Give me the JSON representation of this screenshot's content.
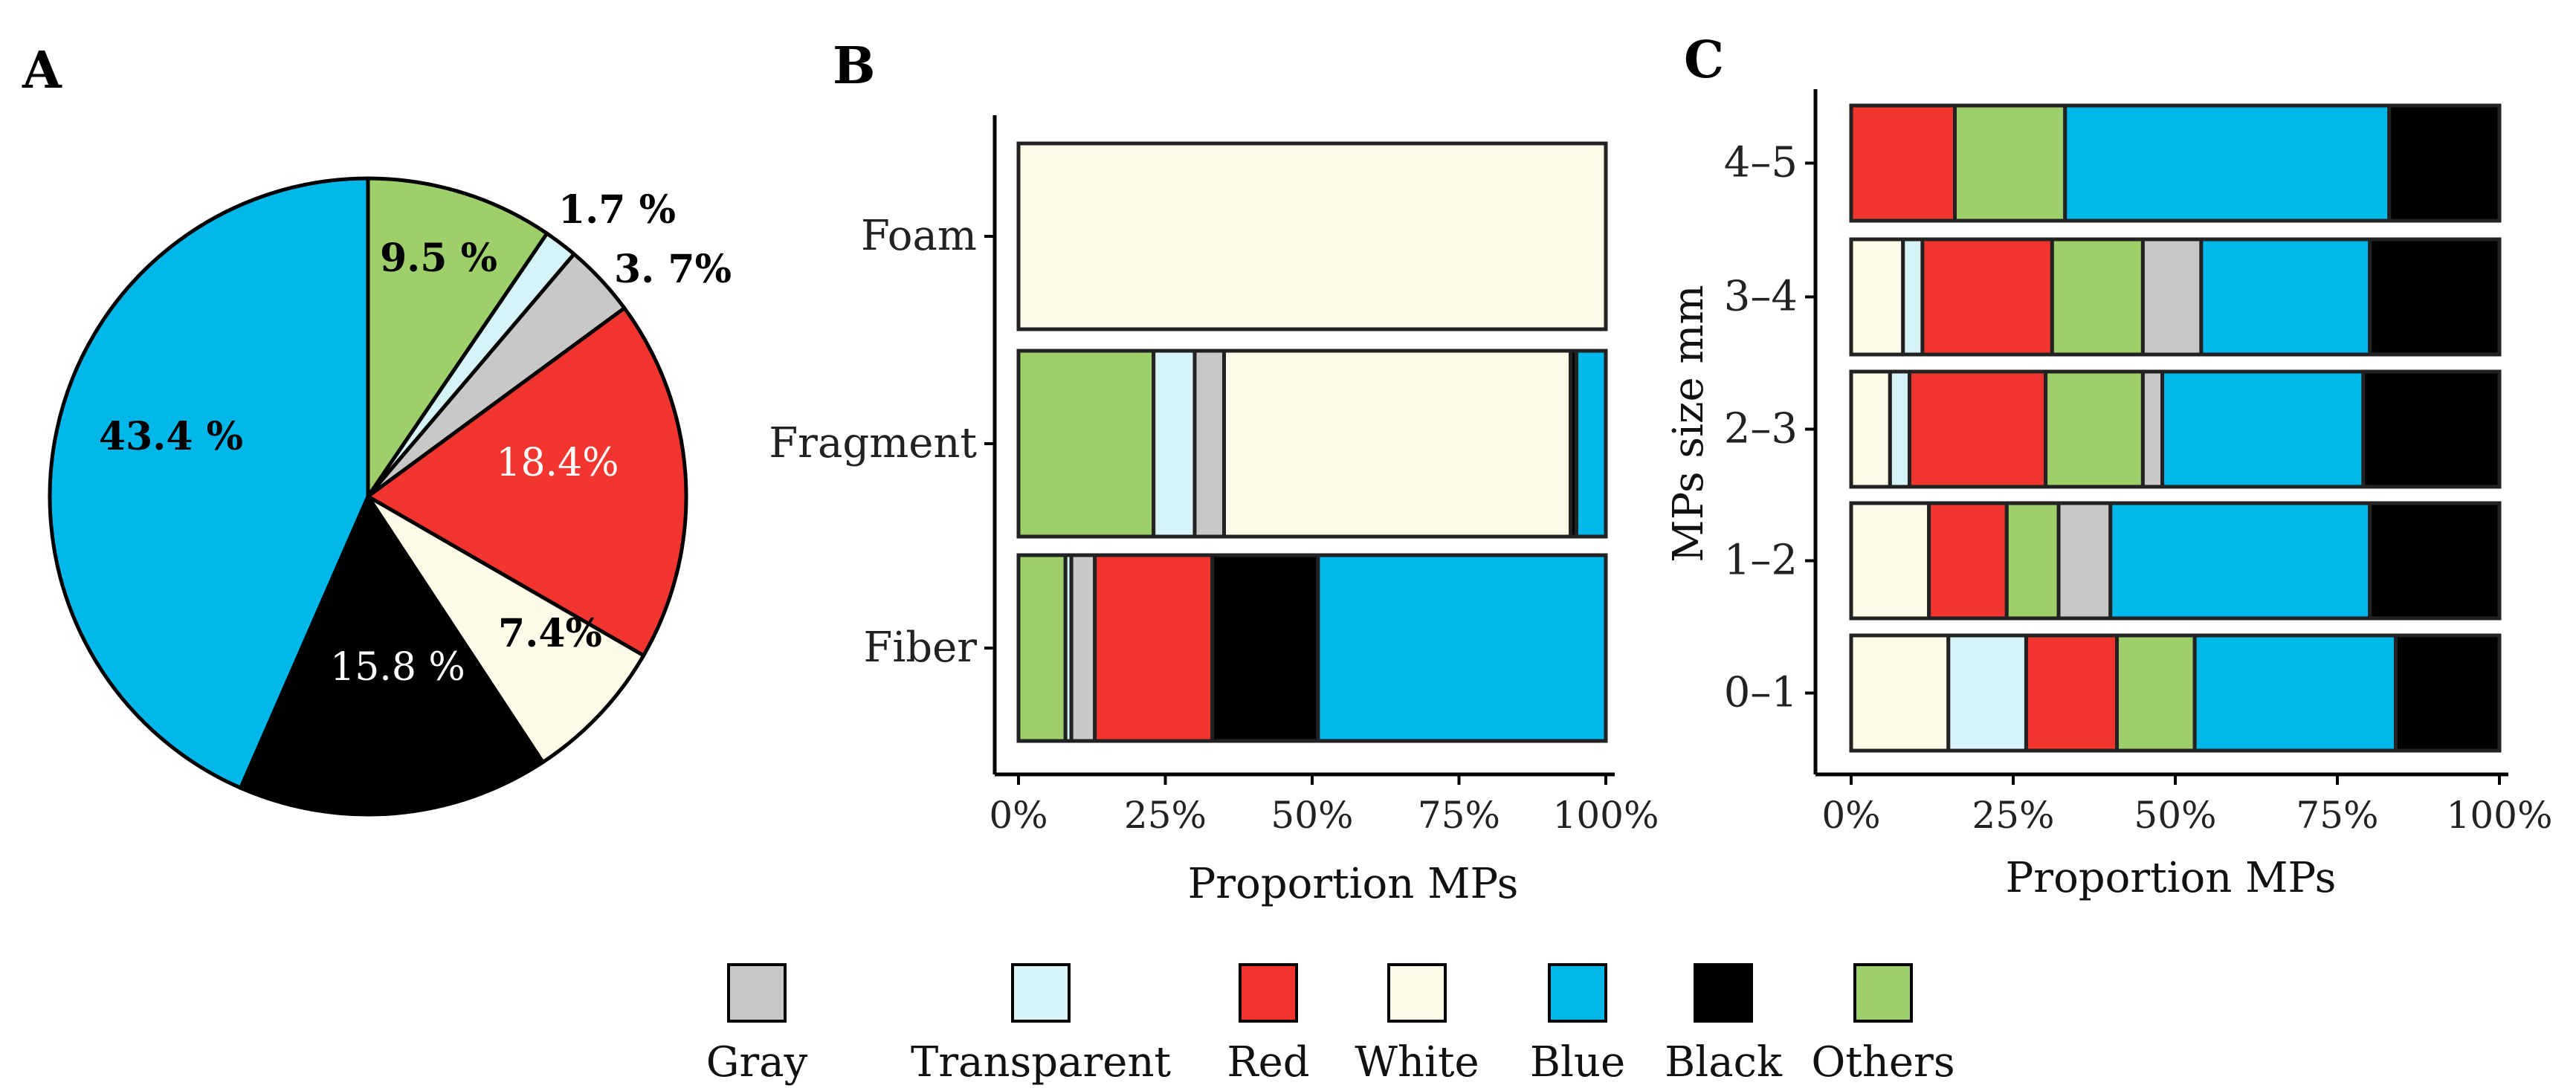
{
  "colors": {
    "Gray": "#c8c8c8",
    "Transparent": "#d6f3f8",
    "Red": "#f2362f",
    "White": "#fefbe8",
    "Blue": "#00b7ea",
    "Black": "#000000",
    "Others": "#9dcf6b"
  },
  "legend": {
    "items": [
      "Gray",
      "Transparent",
      "Red",
      "White",
      "Blue",
      "Black",
      "Others"
    ]
  },
  "chart_data": [
    {
      "panel": "A",
      "type": "pie",
      "slices": [
        {
          "category": "Others",
          "value": 9.5,
          "label": "9.5 %",
          "label_color": "#000000",
          "bold": true
        },
        {
          "category": "Transparent",
          "value": 1.7,
          "label": "1.7 %",
          "label_color": "#000000",
          "bold": true
        },
        {
          "category": "Gray",
          "value": 3.7,
          "label": "3. 7%",
          "label_color": "#000000",
          "bold": true
        },
        {
          "category": "Red",
          "value": 18.4,
          "label": "18.4%",
          "label_color": "#ffffff",
          "bold": false
        },
        {
          "category": "White",
          "value": 7.4,
          "label": "7.4%",
          "label_color": "#000000",
          "bold": true
        },
        {
          "category": "Black",
          "value": 15.8,
          "label": "15.8 %",
          "label_color": "#ffffff",
          "bold": false
        },
        {
          "category": "Blue",
          "value": 43.4,
          "label": "43.4 %",
          "label_color": "#000000",
          "bold": true
        }
      ]
    },
    {
      "panel": "B",
      "type": "bar",
      "orientation": "horizontal",
      "stacked": true,
      "categories": [
        "Foam",
        "Fragment",
        "Fiber"
      ],
      "series": [
        {
          "name": "Others",
          "values": [
            0,
            23,
            8
          ]
        },
        {
          "name": "Transparent",
          "values": [
            0,
            7,
            1
          ]
        },
        {
          "name": "Gray",
          "values": [
            0,
            5,
            4
          ]
        },
        {
          "name": "Red",
          "values": [
            0,
            0,
            20
          ]
        },
        {
          "name": "White",
          "values": [
            100,
            59,
            0
          ]
        },
        {
          "name": "Black",
          "values": [
            0,
            1,
            18
          ]
        },
        {
          "name": "Blue",
          "values": [
            0,
            5,
            49
          ]
        }
      ],
      "xticks": [
        "0%",
        "25%",
        "50%",
        "75%",
        "100%"
      ],
      "xlabel": "Proportion MPs",
      "ylabel": "",
      "xlim": [
        0,
        100
      ]
    },
    {
      "panel": "C",
      "type": "bar",
      "orientation": "horizontal",
      "stacked": true,
      "categories": [
        "4–5",
        "3–4",
        "2–3",
        "1–2",
        "0–1"
      ],
      "series": [
        {
          "name": "White",
          "values": [
            0,
            8,
            6,
            12,
            15
          ]
        },
        {
          "name": "Transparent",
          "values": [
            0,
            3,
            3,
            0,
            12
          ]
        },
        {
          "name": "Red",
          "values": [
            16,
            20,
            21,
            12,
            14
          ]
        },
        {
          "name": "Others",
          "values": [
            17,
            14,
            15,
            8,
            12
          ]
        },
        {
          "name": "Gray",
          "values": [
            0,
            9,
            3,
            8,
            0
          ]
        },
        {
          "name": "Blue",
          "values": [
            50,
            26,
            31,
            40,
            31
          ]
        },
        {
          "name": "Black",
          "values": [
            17,
            20,
            21,
            20,
            16
          ]
        }
      ],
      "xticks": [
        "0%",
        "25%",
        "50%",
        "75%",
        "100%"
      ],
      "xlabel": "Proportion MPs",
      "ylabel": "MPs size mm",
      "xlim": [
        0,
        100
      ]
    }
  ],
  "panels": {
    "a": "A",
    "b": "B",
    "c": "C"
  }
}
